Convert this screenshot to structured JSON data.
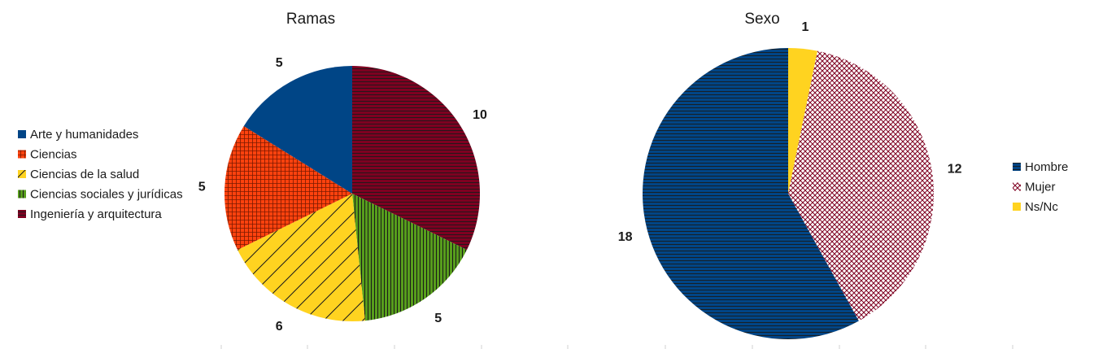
{
  "chart_data": [
    {
      "type": "pie",
      "title": "Ramas",
      "legend_position": "left",
      "slices": [
        {
          "label": "Arte y humanidades",
          "value": 5,
          "color": "#004586",
          "pattern": "solid"
        },
        {
          "label": "Ciencias",
          "value": 5,
          "color": "#ff420e",
          "pattern": "grid"
        },
        {
          "label": "Ciencias de la salud",
          "value": 6,
          "color": "#ffd320",
          "pattern": "diagonal"
        },
        {
          "label": "Ciencias sociales y jurídicas",
          "value": 5,
          "color": "#579d1c",
          "pattern": "vertical"
        },
        {
          "label": "Ingeniería y arquitectura",
          "value": 10,
          "color": "#7e0021",
          "pattern": "horizontal"
        }
      ]
    },
    {
      "type": "pie",
      "title": "Sexo",
      "legend_position": "right",
      "slices": [
        {
          "label": "Hombre",
          "value": 18,
          "color": "#004586",
          "pattern": "horizontal"
        },
        {
          "label": "Mujer",
          "value": 12,
          "color": "#7e0021",
          "pattern": "crosshatch"
        },
        {
          "label": "Ns/Nc",
          "value": 1,
          "color": "#ffd320",
          "pattern": "solid"
        }
      ]
    }
  ]
}
